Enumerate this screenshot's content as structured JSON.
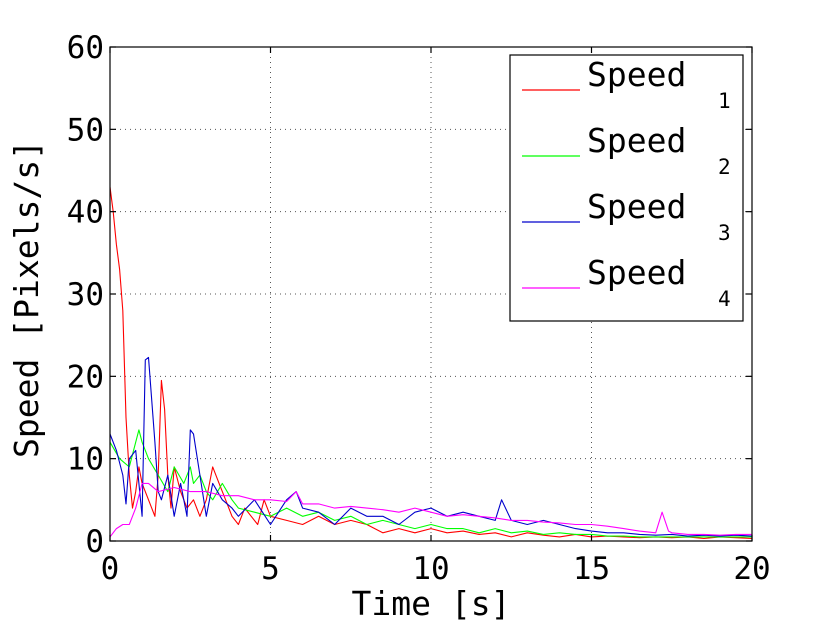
{
  "chart_data": {
    "type": "line",
    "title": "",
    "xlabel": "Time [s]",
    "ylabel": "Speed [Pixels/s]",
    "xlim": [
      0,
      20
    ],
    "ylim": [
      0,
      60
    ],
    "xticks": [
      0,
      5,
      10,
      15,
      20
    ],
    "yticks": [
      0,
      10,
      20,
      30,
      40,
      50,
      60
    ],
    "grid": true,
    "legend_position": "top-right",
    "series": [
      {
        "name": "Speed",
        "subscript": "1",
        "color": "#ff0000",
        "x": [
          0,
          0.1,
          0.2,
          0.3,
          0.4,
          0.5,
          0.6,
          0.7,
          0.8,
          0.9,
          1.0,
          1.2,
          1.4,
          1.5,
          1.6,
          1.7,
          1.8,
          1.9,
          2.0,
          2.2,
          2.4,
          2.6,
          2.8,
          3.0,
          3.2,
          3.4,
          3.6,
          3.8,
          4.0,
          4.2,
          4.4,
          4.6,
          4.8,
          5.0,
          5.5,
          6.0,
          6.5,
          7.0,
          7.5,
          8.0,
          8.5,
          9.0,
          9.5,
          10.0,
          10.5,
          11.0,
          11.5,
          12.0,
          12.5,
          13.0,
          13.5,
          14.0,
          14.5,
          15.0,
          15.5,
          16.0,
          16.5,
          17.0,
          17.5,
          18.0,
          18.5,
          19.0,
          19.5,
          20.0
        ],
        "values": [
          43,
          40,
          36,
          33,
          28,
          15,
          8,
          4,
          6,
          9,
          7,
          5,
          3,
          8,
          19.5,
          16,
          8,
          4,
          9,
          6,
          4,
          5,
          3,
          5,
          9,
          7,
          5,
          3,
          2,
          4,
          3,
          2,
          5,
          3,
          2.5,
          2,
          3,
          2,
          2.5,
          2,
          1,
          1.5,
          1,
          1.5,
          1,
          1.2,
          0.8,
          1,
          0.5,
          1,
          0.7,
          0.5,
          0.8,
          0.5,
          0.6,
          0.5,
          0.4,
          0.5,
          0.4,
          0.5,
          0.3,
          0.5,
          0.4,
          0.3
        ]
      },
      {
        "name": "Speed",
        "subscript": "2",
        "color": "#00ff00",
        "x": [
          0,
          0.3,
          0.6,
          0.9,
          1.0,
          1.2,
          1.5,
          1.8,
          2.0,
          2.3,
          2.5,
          2.6,
          2.8,
          3.0,
          3.2,
          3.5,
          3.8,
          4.0,
          4.5,
          5.0,
          5.5,
          6.0,
          6.5,
          7.0,
          7.5,
          8.0,
          8.5,
          9.0,
          9.5,
          10.0,
          10.5,
          11.0,
          11.5,
          12.0,
          12.5,
          13.0,
          13.5,
          14.0,
          14.5,
          15.0,
          15.5,
          16.0,
          16.5,
          17.0,
          17.5,
          18.0,
          18.5,
          19.0,
          19.5,
          20.0
        ],
        "values": [
          12,
          10,
          9,
          13.5,
          12,
          10,
          8,
          6,
          9,
          7,
          9,
          7,
          8,
          6,
          5,
          7,
          5,
          4,
          3.5,
          3,
          4,
          3,
          3.5,
          2.5,
          3,
          2,
          2.5,
          2,
          1.5,
          2,
          1.5,
          1.5,
          1,
          1.5,
          1,
          1.2,
          0.8,
          1,
          0.8,
          0.8,
          0.6,
          0.6,
          0.5,
          0.5,
          0.5,
          0.5,
          0.5,
          0.5,
          0.5,
          0.5
        ]
      },
      {
        "name": "Speed",
        "subscript": "3",
        "color": "#0000cc",
        "x": [
          0,
          0.2,
          0.4,
          0.5,
          0.6,
          0.8,
          1.0,
          1.1,
          1.2,
          1.4,
          1.5,
          1.6,
          1.8,
          2.0,
          2.2,
          2.4,
          2.5,
          2.6,
          2.8,
          3.0,
          3.2,
          3.5,
          3.8,
          4.0,
          4.5,
          5.0,
          5.5,
          5.8,
          6.0,
          6.5,
          7.0,
          7.5,
          8.0,
          8.5,
          9.0,
          9.5,
          10.0,
          10.5,
          11.0,
          11.5,
          12.0,
          12.2,
          12.5,
          13.0,
          13.5,
          14.0,
          14.5,
          15.0,
          15.5,
          16.0,
          16.5,
          17.0,
          17.5,
          18.0,
          18.5,
          19.0,
          19.5,
          20.0
        ],
        "values": [
          13,
          11,
          8,
          4.5,
          10,
          11,
          3,
          22,
          22.3,
          12,
          6,
          5,
          8,
          3,
          7,
          3,
          13.5,
          13,
          8,
          3,
          7,
          5,
          4,
          3,
          5,
          2,
          5,
          6,
          4,
          3.5,
          2,
          4,
          3,
          3,
          2,
          3.5,
          4,
          3,
          3.5,
          3,
          2.5,
          5,
          2.5,
          2,
          2.5,
          2,
          1.5,
          1.2,
          1,
          1,
          0.8,
          0.7,
          0.8,
          0.6,
          0.7,
          0.6,
          0.7,
          0.6
        ]
      },
      {
        "name": "Speed",
        "subscript": "4",
        "color": "#ff00ff",
        "x": [
          0,
          0.2,
          0.4,
          0.6,
          0.8,
          1.0,
          1.2,
          1.5,
          2.0,
          2.5,
          3.0,
          3.5,
          4.0,
          4.5,
          5.0,
          5.5,
          5.8,
          6.0,
          6.5,
          7.0,
          7.5,
          8.0,
          8.5,
          9.0,
          9.5,
          10.0,
          10.5,
          11.0,
          11.5,
          12.0,
          12.5,
          13.0,
          13.5,
          14.0,
          14.5,
          15.0,
          15.5,
          16.0,
          16.5,
          17.0,
          17.2,
          17.4,
          17.5,
          18.0,
          18.5,
          19.0,
          19.5,
          20.0
        ],
        "values": [
          0.5,
          1.5,
          2,
          2,
          4,
          7,
          7,
          6,
          6.5,
          6,
          6,
          5.5,
          5.5,
          5,
          5,
          4.8,
          6,
          4.5,
          4.5,
          4,
          4.2,
          4,
          3.8,
          3.5,
          4,
          3.5,
          3,
          3.2,
          3,
          2.8,
          2.5,
          2.5,
          2.3,
          2.2,
          2,
          2,
          1.8,
          1.5,
          1.2,
          1,
          3.5,
          1.2,
          1,
          0.8,
          0.8,
          0.7,
          0.8,
          0.8
        ]
      }
    ]
  }
}
